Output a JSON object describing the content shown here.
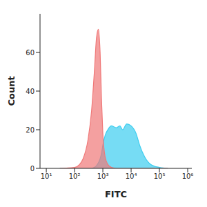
{
  "chart_data": {
    "type": "area",
    "x_label": "FITC",
    "y_label": "Count",
    "log": "x",
    "grid": false,
    "xlim": [
      6,
      1400000
    ],
    "xticks": [
      {
        "value": 10,
        "label": "10¹"
      },
      {
        "value": 100,
        "label": "10²"
      },
      {
        "value": 1000,
        "label": "10³"
      },
      {
        "value": 10000,
        "label": "10⁴"
      },
      {
        "value": 100000,
        "label": "10⁵"
      },
      {
        "value": 1000000,
        "label": "10⁶"
      }
    ],
    "ylim": [
      0,
      80
    ],
    "yticks": [
      0,
      20,
      40,
      60
    ],
    "x": [
      30,
      100,
      150,
      200,
      300,
      400,
      500,
      600,
      700,
      800,
      900,
      1000,
      1200,
      1500,
      2000,
      3000,
      4000,
      5000,
      7000,
      10000,
      15000,
      20000,
      30000,
      50000,
      100000,
      200000
    ],
    "series": [
      {
        "color": "#3ccdef",
        "values": [
          0,
          0,
          0,
          0,
          0,
          0,
          0.5,
          1.5,
          3,
          5,
          8,
          12,
          17,
          20,
          22,
          21,
          22,
          20,
          23,
          22,
          18,
          12,
          6,
          2,
          0.5,
          0
        ]
      },
      {
        "color": "#f07878",
        "values": [
          0,
          0.5,
          2,
          5,
          15,
          30,
          50,
          68,
          72,
          60,
          35,
          18,
          6,
          2,
          0.5,
          0,
          0,
          0,
          0,
          0,
          0,
          0,
          0,
          0,
          0,
          0
        ]
      }
    ]
  }
}
